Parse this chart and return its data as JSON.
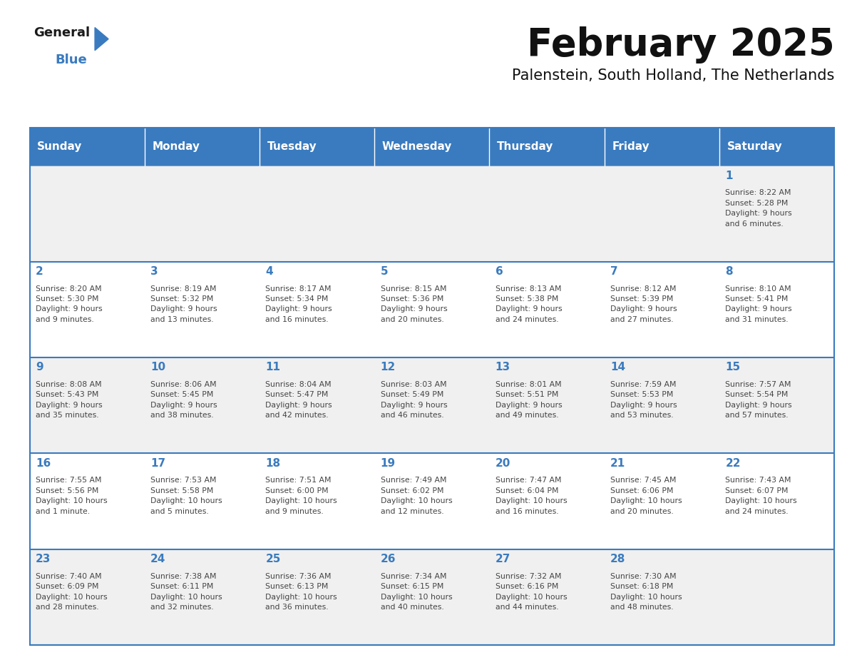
{
  "title": "February 2025",
  "subtitle": "Palenstein, South Holland, The Netherlands",
  "header_color": "#3a7bbf",
  "header_text_color": "#ffffff",
  "cell_bg_color_odd": "#f0f0f0",
  "cell_bg_color_even": "#ffffff",
  "day_number_color": "#3a7bbf",
  "text_color": "#444444",
  "days_of_week": [
    "Sunday",
    "Monday",
    "Tuesday",
    "Wednesday",
    "Thursday",
    "Friday",
    "Saturday"
  ],
  "calendar_data": [
    [
      {
        "day": null,
        "info": null
      },
      {
        "day": null,
        "info": null
      },
      {
        "day": null,
        "info": null
      },
      {
        "day": null,
        "info": null
      },
      {
        "day": null,
        "info": null
      },
      {
        "day": null,
        "info": null
      },
      {
        "day": 1,
        "info": "Sunrise: 8:22 AM\nSunset: 5:28 PM\nDaylight: 9 hours\nand 6 minutes."
      }
    ],
    [
      {
        "day": 2,
        "info": "Sunrise: 8:20 AM\nSunset: 5:30 PM\nDaylight: 9 hours\nand 9 minutes."
      },
      {
        "day": 3,
        "info": "Sunrise: 8:19 AM\nSunset: 5:32 PM\nDaylight: 9 hours\nand 13 minutes."
      },
      {
        "day": 4,
        "info": "Sunrise: 8:17 AM\nSunset: 5:34 PM\nDaylight: 9 hours\nand 16 minutes."
      },
      {
        "day": 5,
        "info": "Sunrise: 8:15 AM\nSunset: 5:36 PM\nDaylight: 9 hours\nand 20 minutes."
      },
      {
        "day": 6,
        "info": "Sunrise: 8:13 AM\nSunset: 5:38 PM\nDaylight: 9 hours\nand 24 minutes."
      },
      {
        "day": 7,
        "info": "Sunrise: 8:12 AM\nSunset: 5:39 PM\nDaylight: 9 hours\nand 27 minutes."
      },
      {
        "day": 8,
        "info": "Sunrise: 8:10 AM\nSunset: 5:41 PM\nDaylight: 9 hours\nand 31 minutes."
      }
    ],
    [
      {
        "day": 9,
        "info": "Sunrise: 8:08 AM\nSunset: 5:43 PM\nDaylight: 9 hours\nand 35 minutes."
      },
      {
        "day": 10,
        "info": "Sunrise: 8:06 AM\nSunset: 5:45 PM\nDaylight: 9 hours\nand 38 minutes."
      },
      {
        "day": 11,
        "info": "Sunrise: 8:04 AM\nSunset: 5:47 PM\nDaylight: 9 hours\nand 42 minutes."
      },
      {
        "day": 12,
        "info": "Sunrise: 8:03 AM\nSunset: 5:49 PM\nDaylight: 9 hours\nand 46 minutes."
      },
      {
        "day": 13,
        "info": "Sunrise: 8:01 AM\nSunset: 5:51 PM\nDaylight: 9 hours\nand 49 minutes."
      },
      {
        "day": 14,
        "info": "Sunrise: 7:59 AM\nSunset: 5:53 PM\nDaylight: 9 hours\nand 53 minutes."
      },
      {
        "day": 15,
        "info": "Sunrise: 7:57 AM\nSunset: 5:54 PM\nDaylight: 9 hours\nand 57 minutes."
      }
    ],
    [
      {
        "day": 16,
        "info": "Sunrise: 7:55 AM\nSunset: 5:56 PM\nDaylight: 10 hours\nand 1 minute."
      },
      {
        "day": 17,
        "info": "Sunrise: 7:53 AM\nSunset: 5:58 PM\nDaylight: 10 hours\nand 5 minutes."
      },
      {
        "day": 18,
        "info": "Sunrise: 7:51 AM\nSunset: 6:00 PM\nDaylight: 10 hours\nand 9 minutes."
      },
      {
        "day": 19,
        "info": "Sunrise: 7:49 AM\nSunset: 6:02 PM\nDaylight: 10 hours\nand 12 minutes."
      },
      {
        "day": 20,
        "info": "Sunrise: 7:47 AM\nSunset: 6:04 PM\nDaylight: 10 hours\nand 16 minutes."
      },
      {
        "day": 21,
        "info": "Sunrise: 7:45 AM\nSunset: 6:06 PM\nDaylight: 10 hours\nand 20 minutes."
      },
      {
        "day": 22,
        "info": "Sunrise: 7:43 AM\nSunset: 6:07 PM\nDaylight: 10 hours\nand 24 minutes."
      }
    ],
    [
      {
        "day": 23,
        "info": "Sunrise: 7:40 AM\nSunset: 6:09 PM\nDaylight: 10 hours\nand 28 minutes."
      },
      {
        "day": 24,
        "info": "Sunrise: 7:38 AM\nSunset: 6:11 PM\nDaylight: 10 hours\nand 32 minutes."
      },
      {
        "day": 25,
        "info": "Sunrise: 7:36 AM\nSunset: 6:13 PM\nDaylight: 10 hours\nand 36 minutes."
      },
      {
        "day": 26,
        "info": "Sunrise: 7:34 AM\nSunset: 6:15 PM\nDaylight: 10 hours\nand 40 minutes."
      },
      {
        "day": 27,
        "info": "Sunrise: 7:32 AM\nSunset: 6:16 PM\nDaylight: 10 hours\nand 44 minutes."
      },
      {
        "day": 28,
        "info": "Sunrise: 7:30 AM\nSunset: 6:18 PM\nDaylight: 10 hours\nand 48 minutes."
      },
      {
        "day": null,
        "info": null
      }
    ]
  ],
  "logo_text_general": "General",
  "logo_text_blue": "Blue",
  "logo_color_general": "#1a1a1a",
  "logo_color_blue": "#3a7bbf",
  "logo_triangle_color": "#3a7bbf"
}
